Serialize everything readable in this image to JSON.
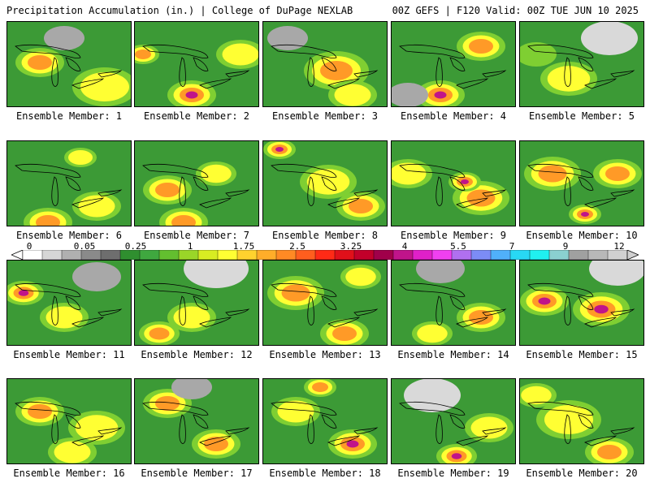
{
  "header": {
    "title": "Precipitation Accumulation (in.) | College of DuPage NEXLAB",
    "run_info": "00Z GEFS | F120 Valid: 00Z TUE JUN 10 2025"
  },
  "panels": [
    {
      "label": "Ensemble Member: 1"
    },
    {
      "label": "Ensemble Member: 2"
    },
    {
      "label": "Ensemble Member: 3"
    },
    {
      "label": "Ensemble Member: 4"
    },
    {
      "label": "Ensemble Member: 5"
    },
    {
      "label": "Ensemble Member: 6"
    },
    {
      "label": "Ensemble Member: 7"
    },
    {
      "label": "Ensemble Member: 8"
    },
    {
      "label": "Ensemble Member: 9"
    },
    {
      "label": "Ensemble Member: 10"
    },
    {
      "label": "Ensemble Member: 11"
    },
    {
      "label": "Ensemble Member: 12"
    },
    {
      "label": "Ensemble Member: 13"
    },
    {
      "label": "Ensemble Member: 14"
    },
    {
      "label": "Ensemble Member: 15"
    },
    {
      "label": "Ensemble Member: 16"
    },
    {
      "label": "Ensemble Member: 17"
    },
    {
      "label": "Ensemble Member: 18"
    },
    {
      "label": "Ensemble Member: 19"
    },
    {
      "label": "Ensemble Member: 20"
    }
  ],
  "scale": {
    "tick_labels": [
      "0",
      "0.05",
      "0.25",
      "1",
      "1.75",
      "2.5",
      "3.25",
      "4",
      "5.5",
      "7",
      "9",
      "12"
    ],
    "colors": [
      "#ffffff",
      "#d6d6d6",
      "#b0b0b0",
      "#8a8a8a",
      "#6e6e6e",
      "#2f8f2f",
      "#3fa83f",
      "#63bf2f",
      "#9ad628",
      "#d8ec22",
      "#ffff33",
      "#ffd22e",
      "#ffad29",
      "#ff8a24",
      "#ff5e1e",
      "#ff2a16",
      "#e0101a",
      "#c2002a",
      "#a0004a",
      "#c0148a",
      "#e020c8",
      "#f040f0",
      "#b070f0",
      "#7c8cf6",
      "#50b0fa",
      "#28d8f4",
      "#20f0f0",
      "#8ad0d0",
      "#a0a0a0",
      "#b8b8b8",
      "#d0d0d0"
    ]
  }
}
